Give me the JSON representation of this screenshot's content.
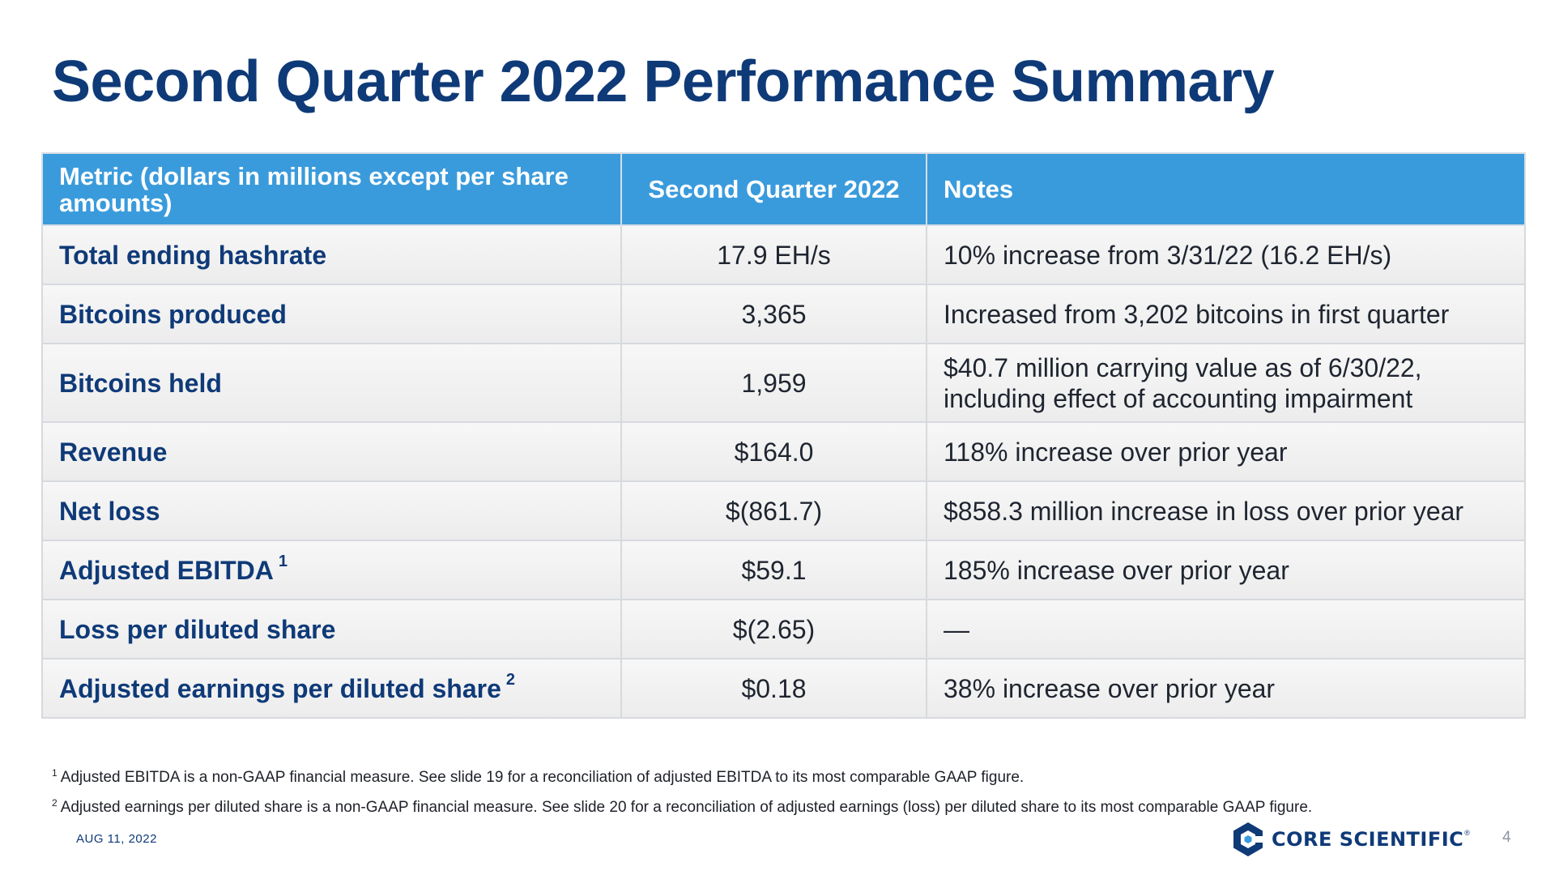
{
  "title": "Second Quarter 2022 Performance Summary",
  "table": {
    "headers": [
      "Metric (dollars in millions except per share amounts)",
      "Second Quarter 2022",
      "Notes"
    ],
    "rows": [
      {
        "metric": "Total ending hashrate",
        "sup": "",
        "value": "17.9 EH/s",
        "note": "10% increase from 3/31/22 (16.2 EH/s)"
      },
      {
        "metric": "Bitcoins produced",
        "sup": "",
        "value": "3,365",
        "note": "Increased from 3,202 bitcoins in first quarter"
      },
      {
        "metric": "Bitcoins held",
        "sup": "",
        "value": "1,959",
        "note": "$40.7 million carrying value as of 6/30/22, including effect of accounting impairment"
      },
      {
        "metric": "Revenue",
        "sup": "",
        "value": "$164.0",
        "note": "118% increase over prior year"
      },
      {
        "metric": "Net loss",
        "sup": "",
        "value": "$(861.7)",
        "note": "$858.3 million increase in loss over prior year"
      },
      {
        "metric": "Adjusted EBITDA",
        "sup": "1",
        "value": "$59.1",
        "note": "185% increase over prior year"
      },
      {
        "metric": "Loss per diluted share",
        "sup": "",
        "value": "$(2.65)",
        "note": "—"
      },
      {
        "metric": "Adjusted earnings per diluted share",
        "sup": "2",
        "value": "$0.18",
        "note": "38% increase over prior year"
      }
    ]
  },
  "footnotes": [
    {
      "marker": "1",
      "text": "Adjusted EBITDA is a non-GAAP financial measure. See slide 19 for a reconciliation of adjusted EBITDA to its most comparable GAAP figure."
    },
    {
      "marker": "2",
      "text": "Adjusted earnings per diluted share is a non-GAAP financial measure.  See slide 20 for a reconciliation of adjusted earnings (loss) per diluted share to its most comparable GAAP figure."
    }
  ],
  "date": "AUG 11, 2022",
  "logo": {
    "text": "CORE SCIENTIFIC",
    "registered": "®",
    "icon": "hexagon-c-icon"
  },
  "page_number": "4",
  "colors": {
    "title": "#0f3a78",
    "header_bg": "#3a9bdc",
    "metric_text": "#0f3a78"
  }
}
